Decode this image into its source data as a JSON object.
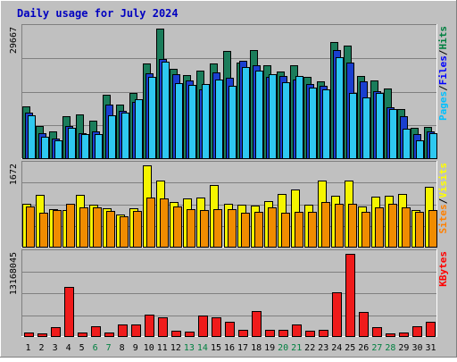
{
  "chart_data": {
    "type": "bar",
    "title": "Daily usage for July 2024",
    "categories": [
      "1",
      "2",
      "3",
      "4",
      "5",
      "6",
      "7",
      "8",
      "9",
      "10",
      "11",
      "12",
      "13",
      "14",
      "15",
      "16",
      "17",
      "18",
      "19",
      "20",
      "21",
      "22",
      "23",
      "24",
      "25",
      "26",
      "27",
      "28",
      "29",
      "30",
      "31"
    ],
    "weekend_days": [
      "6",
      "7",
      "13",
      "14",
      "20",
      "21",
      "27",
      "28"
    ],
    "panels": [
      {
        "id": "hits",
        "axis_max_label": "29667",
        "ylim": [
          0,
          29667
        ],
        "legend": [
          {
            "text": "Pages",
            "color": "#00c0ff"
          },
          {
            "text": "/",
            "color": "#000000"
          },
          {
            "text": "Files",
            "color": "#0000ff"
          },
          {
            "text": "/",
            "color": "#000000"
          },
          {
            "text": "Hits",
            "color": "#008040"
          }
        ],
        "series": [
          {
            "name": "Hits",
            "color": "#1b7d5b",
            "values": [
              11900,
              7400,
              6200,
              9700,
              10100,
              8600,
              14500,
              12200,
              15000,
              21700,
              29667,
              20500,
              19000,
              20100,
              21700,
              24500,
              21900,
              24800,
              21200,
              19800,
              21200,
              18600,
              17600,
              26500,
              25800,
              18800,
              17700,
              15900,
              11200,
              6900,
              7200
            ]
          },
          {
            "name": "Files",
            "color": "#1a3fd0",
            "values": [
              10400,
              5700,
              4600,
              7400,
              5700,
              6200,
              12200,
              10800,
              12900,
              19500,
              22700,
              19300,
              17700,
              15800,
              19700,
              18400,
              22300,
              21300,
              18700,
              18800,
              18000,
              17000,
              16500,
              24800,
              21900,
              17500,
              15300,
              11700,
              9700,
              5600,
              6200
            ]
          },
          {
            "name": "Pages",
            "color": "#2ec8f0",
            "values": [
              9900,
              4900,
              4000,
              7000,
              5600,
              5500,
              9800,
              10500,
              13600,
              18700,
              22000,
              17200,
              16800,
              17000,
              18000,
              16600,
              20800,
              20000,
              19200,
              17400,
              18900,
              16100,
              15700,
              23100,
              15000,
              13900,
              14900,
              11200,
              6800,
              4000,
              5700
            ]
          }
        ]
      },
      {
        "id": "visits",
        "axis_max_label": "1672",
        "ylim": [
          0,
          1672
        ],
        "legend": [
          {
            "text": "Sites",
            "color": "#ff8000"
          },
          {
            "text": "/",
            "color": "#000000"
          },
          {
            "text": "Visits",
            "color": "#ffff00"
          }
        ],
        "series": [
          {
            "name": "Visits",
            "color": "#f5f500",
            "values": [
              890,
              1070,
              770,
              760,
              1070,
              860,
              790,
              660,
              790,
              1672,
              1360,
              920,
              1000,
              1010,
              1260,
              880,
              870,
              850,
              930,
              1090,
              1180,
              870,
              1360,
              1040,
              1360,
              830,
              1020,
              1050,
              1090,
              760,
              1240
            ]
          },
          {
            "name": "Sites",
            "color": "#f08c00",
            "values": [
              830,
              700,
              750,
              880,
              800,
              800,
              740,
              630,
              730,
              1010,
              1000,
              830,
              780,
              760,
              770,
              770,
              690,
              710,
              810,
              700,
              720,
              710,
              920,
              890,
              880,
              710,
              800,
              890,
              810,
              720,
              760
            ]
          }
        ]
      },
      {
        "id": "kbytes",
        "axis_max_label": "13168045",
        "ylim": [
          0,
          13168045
        ],
        "legend": [
          {
            "text": "KBytes",
            "color": "#ff0000"
          }
        ],
        "series": [
          {
            "name": "KBytes",
            "color": "#ef1b1b",
            "values": [
              640000,
              490000,
              1500000,
              7900000,
              550000,
              1550000,
              600000,
              1830000,
              1900000,
              3500000,
              2950000,
              900000,
              700000,
              3250000,
              3050000,
              2350000,
              990000,
              4000000,
              1050000,
              990000,
              1930000,
              900000,
              990000,
              7000000,
              13168045,
              3900000,
              1470000,
              500000,
              550000,
              1600000,
              2280000
            ]
          }
        ]
      }
    ],
    "grid": true,
    "legend_placement": "right, vertical"
  }
}
